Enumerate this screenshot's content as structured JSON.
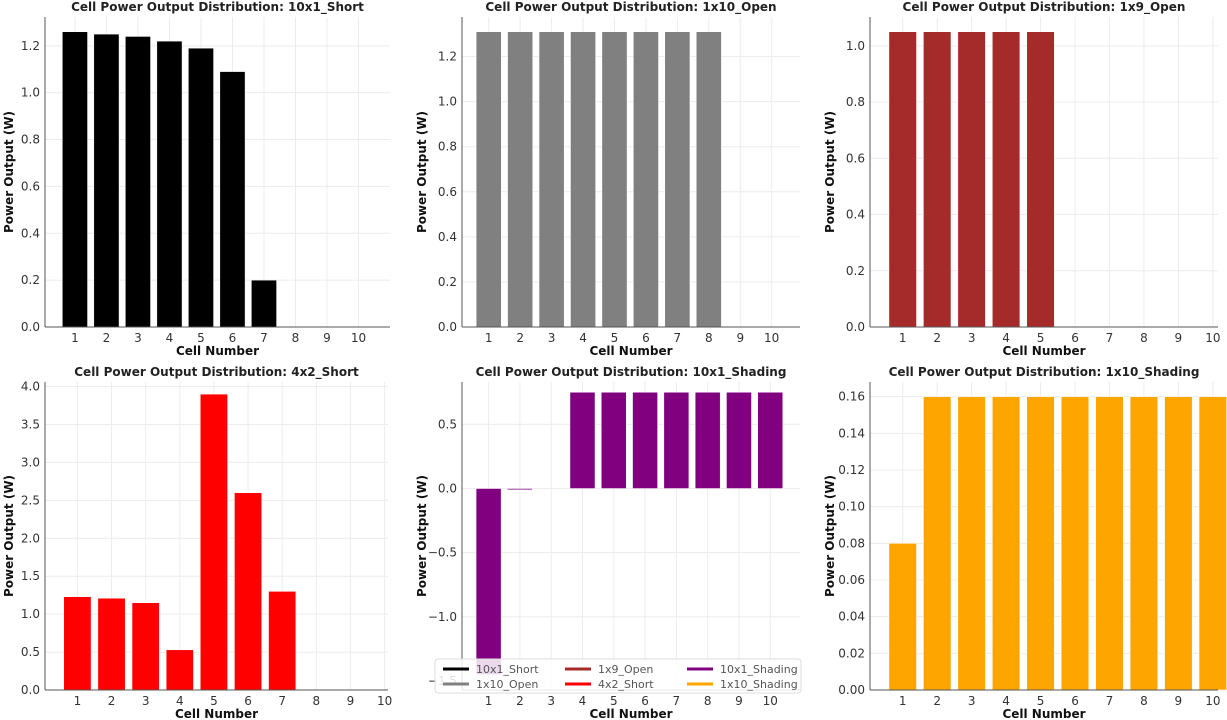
{
  "chart_data": [
    {
      "type": "bar",
      "title": "Cell Power Output Distribution: 10x1_Short",
      "xlabel": "Cell Number",
      "ylabel": "Power Output (W)",
      "categories": [
        1,
        2,
        3,
        4,
        5,
        6,
        7,
        8,
        9,
        10
      ],
      "values": [
        1.26,
        1.25,
        1.24,
        1.22,
        1.19,
        1.09,
        0.2,
        0,
        0,
        0
      ],
      "color": "#000000",
      "xlim": [
        0.05,
        11
      ],
      "ylim": [
        0,
        1.323
      ],
      "yticks": [
        0.0,
        0.2,
        0.4,
        0.6,
        0.8,
        1.0,
        1.2
      ],
      "ytick_decimals": 1,
      "grid": true
    },
    {
      "type": "bar",
      "title": "Cell Power Output Distribution: 1x10_Open",
      "xlabel": "Cell Number",
      "ylabel": "Power Output (W)",
      "categories": [
        1,
        2,
        3,
        4,
        5,
        6,
        7,
        8,
        9,
        10
      ],
      "values": [
        1.31,
        1.31,
        1.31,
        1.31,
        1.31,
        1.31,
        1.31,
        1.31,
        0,
        0
      ],
      "color": "#808080",
      "xlim": [
        0.15,
        10.9
      ],
      "ylim": [
        0,
        1.3755
      ],
      "yticks": [
        0.0,
        0.2,
        0.4,
        0.6,
        0.8,
        1.0,
        1.2
      ],
      "ytick_decimals": 1,
      "grid": true
    },
    {
      "type": "bar",
      "title": "Cell Power Output Distribution: 1x9_Open",
      "xlabel": "Cell Number",
      "ylabel": "Power Output (W)",
      "categories": [
        1,
        2,
        3,
        4,
        5,
        6,
        7,
        8,
        9,
        10
      ],
      "values": [
        1.05,
        1.05,
        1.05,
        1.05,
        1.05,
        0,
        0,
        0,
        0,
        0
      ],
      "color": "#a52a2a",
      "xlim": [
        0.05,
        10.15
      ],
      "ylim": [
        0,
        1.1025
      ],
      "yticks": [
        0.0,
        0.2,
        0.4,
        0.6,
        0.8,
        1.0
      ],
      "ytick_decimals": 1,
      "grid": true
    },
    {
      "type": "bar",
      "title": "Cell Power Output Distribution: 4x2_Short",
      "xlabel": "Cell Number",
      "ylabel": "Power Output (W)",
      "categories": [
        1,
        2,
        3,
        4,
        5,
        6,
        7,
        8,
        9,
        10
      ],
      "values": [
        1.23,
        1.21,
        1.15,
        0.53,
        3.9,
        2.6,
        1.3,
        0,
        0,
        0
      ],
      "color": "#ff0000",
      "xlim": [
        0.05,
        10.1
      ],
      "ylim": [
        0,
        4.06
      ],
      "yticks": [
        0.0,
        0.5,
        1.0,
        1.5,
        2.0,
        2.5,
        3.0,
        3.5,
        4.0
      ],
      "ytick_decimals": 1,
      "grid": true
    },
    {
      "type": "bar",
      "title": "Cell Power Output Distribution: 10x1_Shading",
      "xlabel": "Cell Number",
      "ylabel": "Power Output (W)",
      "categories": [
        1,
        2,
        3,
        4,
        5,
        6,
        7,
        8,
        9,
        10
      ],
      "values": [
        -1.45,
        -0.01,
        0,
        0.75,
        0.75,
        0.75,
        0.75,
        0.75,
        0.75,
        0.75
      ],
      "color": "#800080",
      "xlim": [
        0.15,
        10.95
      ],
      "ylim": [
        -1.57,
        0.83
      ],
      "yticks": [
        -1.5,
        -1.0,
        -0.5,
        0.0,
        0.5
      ],
      "ytick_decimals": 1,
      "grid": true,
      "legend": {
        "placement": "lower-center",
        "entries": [
          {
            "label": "10x1_Short",
            "color": "#000000"
          },
          {
            "label": "1x10_Open",
            "color": "#808080"
          },
          {
            "label": "1x9_Open",
            "color": "#a52a2a"
          },
          {
            "label": "4x2_Short",
            "color": "#ff0000"
          },
          {
            "label": "10x1_Shading",
            "color": "#800080"
          },
          {
            "label": "1x10_Shading",
            "color": "#ffa500"
          }
        ]
      }
    },
    {
      "type": "bar",
      "title": "Cell Power Output Distribution: 1x10_Shading",
      "xlabel": "Cell Number",
      "ylabel": "Power Output (W)",
      "categories": [
        1,
        2,
        3,
        4,
        5,
        6,
        7,
        8,
        9,
        10
      ],
      "values": [
        0.08,
        0.16,
        0.16,
        0.16,
        0.16,
        0.16,
        0.16,
        0.16,
        0.16,
        0.16
      ],
      "color": "#ffa500",
      "xlim": [
        0.05,
        10.15
      ],
      "ylim": [
        0,
        0.168
      ],
      "yticks": [
        0.0,
        0.02,
        0.04,
        0.06,
        0.08,
        0.1,
        0.12,
        0.14,
        0.16
      ],
      "ytick_decimals": 2,
      "grid": true
    }
  ]
}
